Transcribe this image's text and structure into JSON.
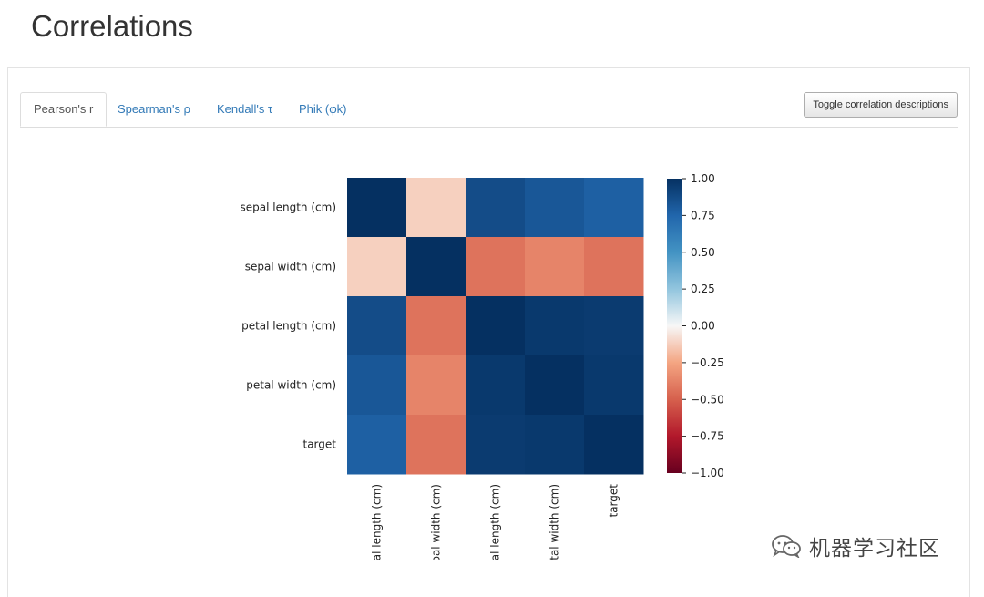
{
  "page": {
    "title": "Correlations"
  },
  "tabs": [
    {
      "label": "Pearson's r",
      "active": true
    },
    {
      "label": "Spearman's ρ",
      "active": false
    },
    {
      "label": "Kendall's τ",
      "active": false
    },
    {
      "label": "Phik (φk)",
      "active": false
    }
  ],
  "toolbar": {
    "toggle_label": "Toggle correlation descriptions"
  },
  "chart_data": {
    "type": "heatmap",
    "title": "",
    "rows": [
      "sepal length (cm)",
      "sepal width (cm)",
      "petal length (cm)",
      "petal width (cm)",
      "target"
    ],
    "columns": [
      "sepal length (cm)",
      "sepal width (cm)",
      "petal length (cm)",
      "petal width (cm)",
      "target"
    ],
    "column_labels_visible": [
      "al length (cm)",
      "pal width (cm)",
      "al length (cm)",
      "tal width (cm)",
      "target"
    ],
    "values": [
      [
        1.0,
        -0.12,
        0.87,
        0.82,
        0.78
      ],
      [
        -0.12,
        1.0,
        -0.43,
        -0.37,
        -0.43
      ],
      [
        0.87,
        -0.43,
        1.0,
        0.96,
        0.95
      ],
      [
        0.82,
        -0.37,
        0.96,
        1.0,
        0.96
      ],
      [
        0.78,
        -0.43,
        0.95,
        0.96,
        1.0
      ]
    ],
    "vmin": -1.0,
    "vmax": 1.0,
    "colormap": "RdBu",
    "colorbar_ticks": [
      "1.00",
      "0.75",
      "0.50",
      "0.25",
      "0.00",
      "−0.25",
      "−0.50",
      "−0.75",
      "−1.00"
    ]
  },
  "watermark": {
    "text": "机器学习社区",
    "icon": "wechat-icon"
  }
}
